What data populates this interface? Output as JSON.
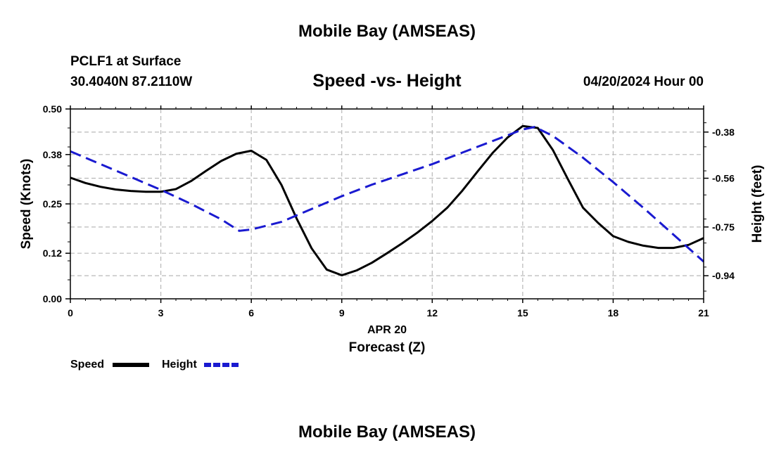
{
  "header": {
    "title": "Mobile Bay (AMSEAS)",
    "station": "PCLF1 at Surface",
    "coords": "30.4040N  87.2110W",
    "datetime": "04/20/2024 Hour 00"
  },
  "footer": {
    "title": "Mobile Bay (AMSEAS)"
  },
  "colors": {
    "speed": "#000000",
    "height": "#1a1ad0",
    "grid": "#b8b8b8"
  },
  "chart_data": {
    "type": "line",
    "title": "Speed -vs- Height",
    "xlabel": "Forecast (Z)",
    "xsublabel": "APR 20",
    "ylabel": "Speed (Knots)",
    "y2label": "Height (feet)",
    "xlim": [
      0,
      21
    ],
    "ylim": [
      0,
      0.5
    ],
    "y2lim": [
      -1.03,
      -0.29
    ],
    "x_ticks": [
      0,
      3,
      6,
      9,
      12,
      15,
      18,
      21
    ],
    "y_ticks": [
      "0.00",
      "0.12",
      "0.25",
      "0.38",
      "0.50"
    ],
    "y2_ticks": [
      "-0.38",
      "-0.56",
      "-0.75",
      "-0.94"
    ],
    "grid": true,
    "legend_position": "bottom-left",
    "series": [
      {
        "name": "Speed",
        "axis": "left",
        "style": "solid",
        "x": [
          0,
          0.5,
          1,
          1.5,
          2,
          2.5,
          3,
          3.5,
          4,
          4.5,
          5,
          5.5,
          6,
          6.5,
          7,
          7.5,
          8,
          8.5,
          9,
          9.5,
          10,
          10.5,
          11,
          11.5,
          12,
          12.5,
          13,
          13.5,
          14,
          14.5,
          15,
          15.5,
          16,
          16.5,
          17,
          17.5,
          18,
          18.5,
          19,
          19.5,
          20,
          20.5,
          21
        ],
        "y": [
          0.319,
          0.305,
          0.295,
          0.288,
          0.284,
          0.282,
          0.282,
          0.289,
          0.31,
          0.337,
          0.363,
          0.382,
          0.39,
          0.366,
          0.3,
          0.212,
          0.133,
          0.077,
          0.062,
          0.075,
          0.095,
          0.12,
          0.146,
          0.174,
          0.205,
          0.24,
          0.285,
          0.335,
          0.384,
          0.425,
          0.455,
          0.45,
          0.392,
          0.315,
          0.24,
          0.2,
          0.165,
          0.15,
          0.14,
          0.134,
          0.134,
          0.142,
          0.16
        ]
      },
      {
        "name": "Height",
        "axis": "right",
        "style": "dashed",
        "x": [
          0,
          1,
          2,
          3,
          4,
          5,
          5.6,
          6,
          7,
          8,
          9,
          10,
          11,
          12,
          13,
          14,
          15,
          15.4,
          16,
          17,
          18,
          19,
          20,
          21
        ],
        "y": [
          -0.455,
          -0.505,
          -0.555,
          -0.605,
          -0.66,
          -0.72,
          -0.765,
          -0.76,
          -0.73,
          -0.68,
          -0.63,
          -0.585,
          -0.545,
          -0.505,
          -0.46,
          -0.415,
          -0.37,
          -0.36,
          -0.395,
          -0.48,
          -0.575,
          -0.675,
          -0.78,
          -0.885
        ]
      }
    ]
  }
}
